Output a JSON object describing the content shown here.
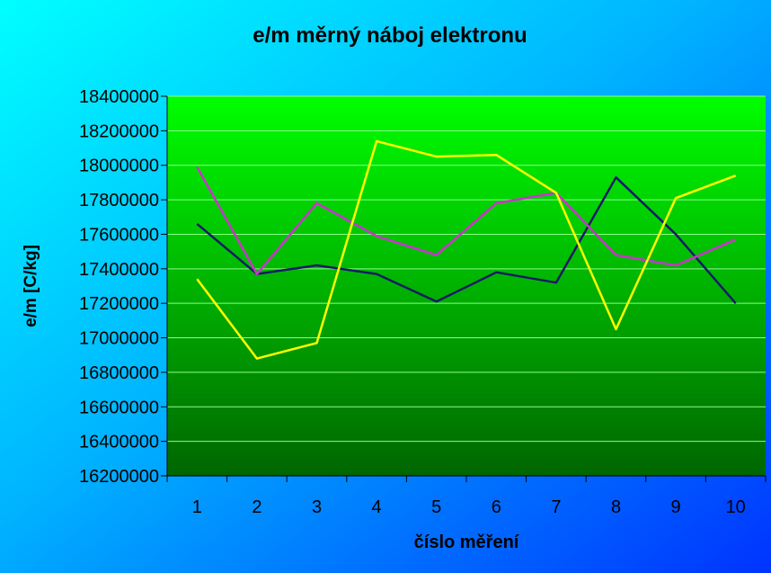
{
  "chart_data": {
    "type": "line",
    "title": "e/m měrný náboj elektronu",
    "xlabel": "číslo měření",
    "ylabel": "e/m [C/kg]",
    "categories": [
      "1",
      "2",
      "3",
      "4",
      "5",
      "6",
      "7",
      "8",
      "9",
      "10"
    ],
    "ylim": [
      16200000,
      18400000
    ],
    "yticks": [
      "16200000",
      "16400000",
      "16600000",
      "16800000",
      "17000000",
      "17200000",
      "17400000",
      "17600000",
      "17800000",
      "18000000",
      "18200000",
      "18400000"
    ],
    "grid": true,
    "legend": "none",
    "series": [
      {
        "color": "#1a1a66",
        "values": [
          17660000,
          17370000,
          17420000,
          17370000,
          17210000,
          17380000,
          17320000,
          17930000,
          17600000,
          17200000
        ]
      },
      {
        "color": "#cc33cc",
        "values": [
          17990000,
          17370000,
          17780000,
          17590000,
          17480000,
          17780000,
          17840000,
          17480000,
          17420000,
          17570000
        ]
      },
      {
        "color": "#ffff00",
        "values": [
          17340000,
          16880000,
          16970000,
          18140000,
          18050000,
          18060000,
          17840000,
          17050000,
          17810000,
          17940000
        ]
      }
    ],
    "colors": {
      "plot_top": "#00ff00",
      "plot_bottom": "#006600",
      "gridline": "#88ff88",
      "axis": "#000000"
    }
  }
}
